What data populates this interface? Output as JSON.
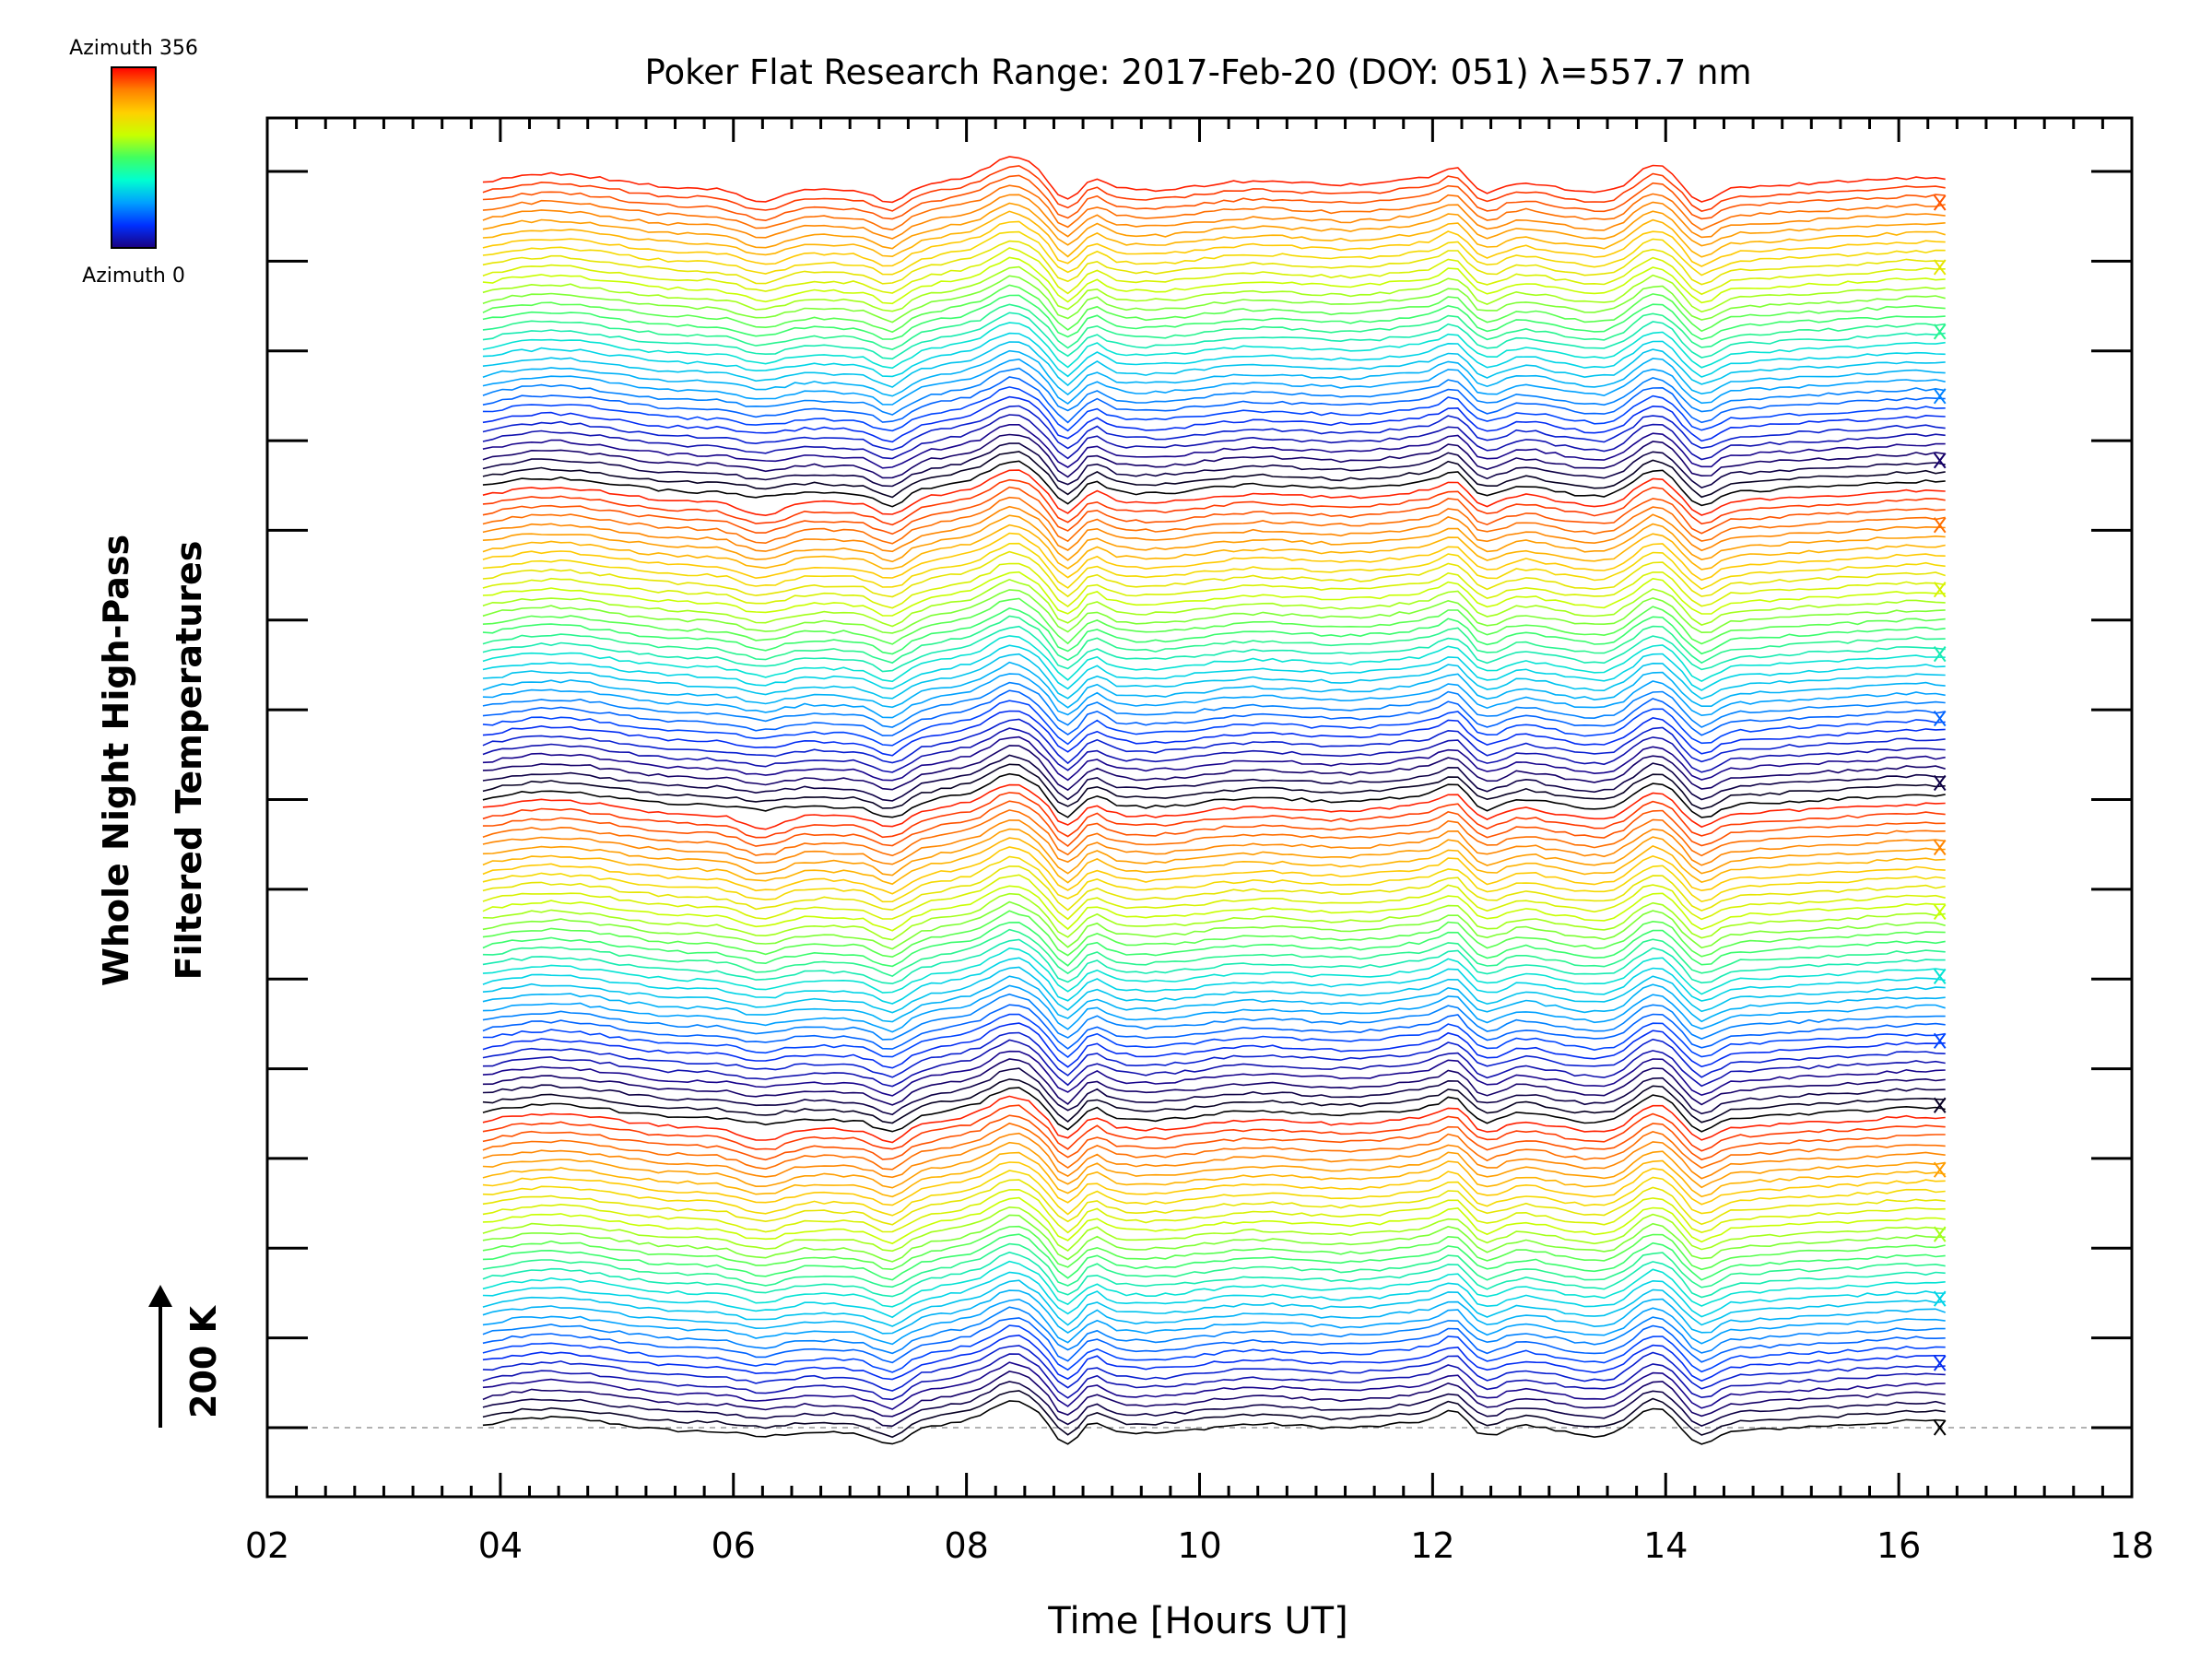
{
  "chart_data": {
    "type": "line",
    "title": "Poker Flat Research Range: 2017-Feb-20 (DOY: 051) λ=557.7 nm",
    "xlabel": "Time [Hours UT]",
    "ylabel_line1": "Whole Night High-Pass",
    "ylabel_line2": "Filtered Temperatures",
    "scale_label": "200 K",
    "scale_value_K": 200,
    "xlim": [
      2,
      18
    ],
    "x_start": 3.85,
    "x_end": 16.4,
    "x_ticks": [
      "02",
      "04",
      "06",
      "08",
      "10",
      "12",
      "14",
      "16",
      "18"
    ],
    "y_major_ticks": 15,
    "colorbar": {
      "top_label": "Azimuth 356",
      "bottom_label": "Azimuth 0",
      "colors": [
        "#ff0000",
        "#ff8000",
        "#ffd000",
        "#c8ff00",
        "#40ff60",
        "#00ffd0",
        "#00a0ff",
        "#0030ff",
        "#1a0080"
      ]
    },
    "series_count": 136,
    "series_azimuth_sequence": "repeating sweep azimuth 0 → 356 (black/navy → blue → cyan → green → yellow → orange → red), stacked bottom to top",
    "baseline_marker": "dashed",
    "common_features": [
      {
        "time_hours": 6.2,
        "description": "cyan dip"
      },
      {
        "time_hours": 7.3,
        "description": "dip"
      },
      {
        "time_hours": 8.4,
        "description": "peak"
      },
      {
        "time_hours": 8.8,
        "description": "dip"
      },
      {
        "time_hours": 12.4,
        "description": "dip"
      },
      {
        "time_hours": 13.9,
        "description": "peak"
      },
      {
        "time_hours": 14.2,
        "description": "drop"
      }
    ]
  }
}
